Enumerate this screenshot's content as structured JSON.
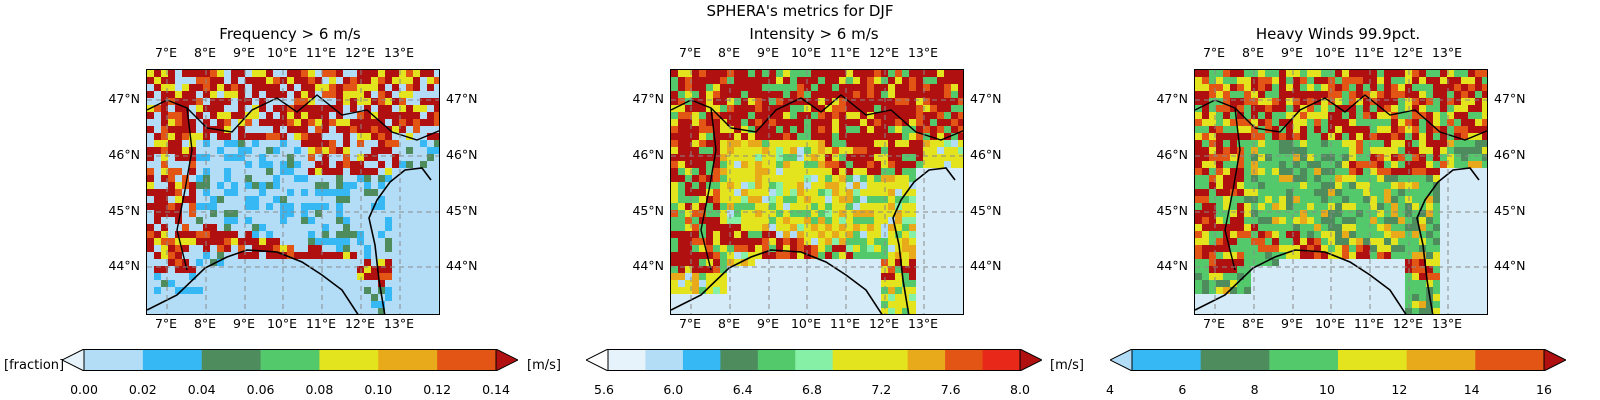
{
  "figure": {
    "suptitle": "SPHERA's metrics for DJF",
    "lon_ticks": [
      "7°E",
      "8°E",
      "9°E",
      "10°E",
      "11°E",
      "12°E",
      "13°E"
    ],
    "lat_ticks": [
      "47°N",
      "46°N",
      "45°N",
      "44°N"
    ]
  },
  "panels": [
    {
      "title": "Frequency > 6 m/s",
      "cbar_left_label": "[fraction]",
      "cbar_right_label": "[m/s]",
      "cbar_ticks": [
        "0.00",
        "0.02",
        "0.04",
        "0.06",
        "0.08",
        "0.10",
        "0.12",
        "0.14"
      ],
      "cbar_colors": [
        "#b3ddf6",
        "#36b8f5",
        "#4e8c5e",
        "#54c96c",
        "#e3e31e",
        "#e8a91a",
        "#e35515"
      ],
      "extend_low_color": "#e6f3fb",
      "extend_high_color": "#b01010",
      "sea_color": "#b3ddf6"
    },
    {
      "title": "Intensity > 6 m/s",
      "cbar_right_label": "[m/s]",
      "cbar_ticks": [
        "5.6",
        "6.0",
        "6.4",
        "6.8",
        "7.2",
        "7.6",
        "8.0"
      ],
      "cbar_colors": [
        "#e6f3fb",
        "#b3ddf6",
        "#36b8f5",
        "#4e8c5e",
        "#54c96c",
        "#86f0a6",
        "#e3e31e",
        "#e3e31e",
        "#e8a91a",
        "#e35515",
        "#e82818"
      ],
      "extend_low_color": "#ffffff",
      "extend_high_color": "#b01010",
      "sea_color": "#d6ebf8"
    },
    {
      "title": "Heavy Winds 99.9pct.",
      "cbar_ticks": [
        "4",
        "6",
        "8",
        "10",
        "12",
        "14",
        "16"
      ],
      "cbar_colors": [
        "#36b8f5",
        "#4e8c5e",
        "#54c96c",
        "#e3e31e",
        "#e8a91a",
        "#e35515"
      ],
      "extend_low_color": "#b3ddf6",
      "extend_high_color": "#b01010",
      "sea_color": "#d6ebf8"
    }
  ]
}
